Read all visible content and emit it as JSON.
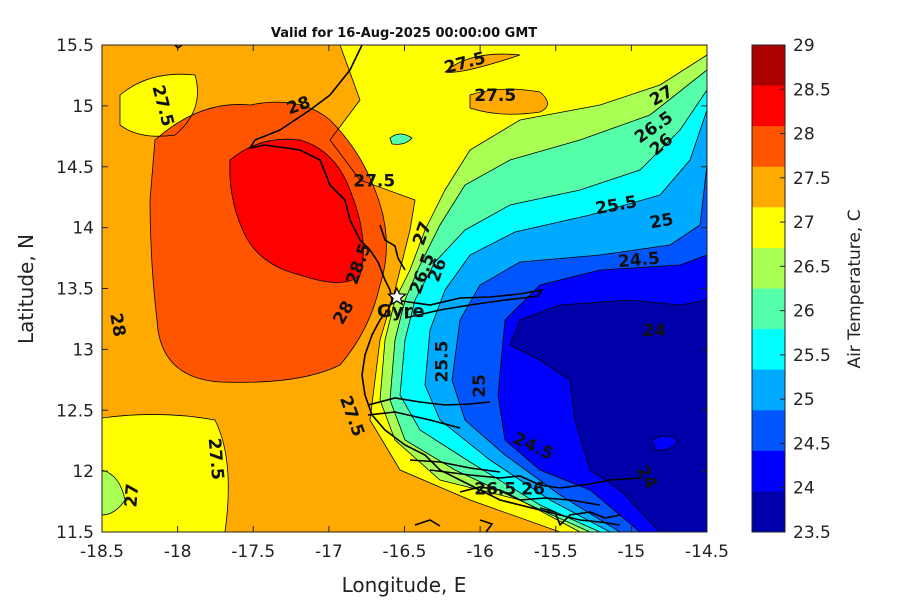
{
  "title": "Valid for 16-Aug-2025 00:00:00 GMT",
  "x_axis": {
    "label": "Longitude, E",
    "ticks": [
      "-18.5",
      "-18",
      "-17.5",
      "-17",
      "-16.5",
      "-16",
      "-15.5",
      "-15",
      "-14.5"
    ]
  },
  "y_axis": {
    "label": "Latitude, N",
    "ticks": [
      "15.5",
      "15",
      "14.5",
      "14",
      "13.5",
      "13",
      "12.5",
      "12",
      "11.5"
    ]
  },
  "colorbar": {
    "label": "Air Temperature, C",
    "ticks": [
      "29",
      "28.5",
      "28",
      "27.5",
      "27",
      "26.5",
      "26",
      "25.5",
      "25",
      "24.5",
      "24",
      "23.5"
    ],
    "colors": [
      "#aa0000",
      "#ff0000",
      "#ff5500",
      "#ffaa00",
      "#ffff00",
      "#aaff55",
      "#55ffaa",
      "#00ffff",
      "#00aaff",
      "#0055ff",
      "#0000ff",
      "#0000aa"
    ]
  },
  "place": {
    "name": "Gyre",
    "lon": -16.55,
    "lat": 13.43
  },
  "contour_labels": [
    {
      "text": "27.5",
      "lon": -18.1,
      "lat": 15.0,
      "rot": 75
    },
    {
      "text": "28",
      "lon": -17.2,
      "lat": 15.0,
      "rot": -20
    },
    {
      "text": "27.5",
      "lon": -16.1,
      "lat": 15.35,
      "rot": -15
    },
    {
      "text": "27.5",
      "lon": -15.9,
      "lat": 15.08,
      "rot": 0
    },
    {
      "text": "27.5",
      "lon": -16.7,
      "lat": 14.38,
      "rot": 0
    },
    {
      "text": "27",
      "lon": -14.8,
      "lat": 15.08,
      "rot": -30
    },
    {
      "text": "26.5",
      "lon": -14.85,
      "lat": 14.82,
      "rot": -35
    },
    {
      "text": "26",
      "lon": -14.8,
      "lat": 14.68,
      "rot": -40
    },
    {
      "text": "25.5",
      "lon": -15.1,
      "lat": 14.18,
      "rot": -10
    },
    {
      "text": "25",
      "lon": -14.8,
      "lat": 14.05,
      "rot": -10
    },
    {
      "text": "24.5",
      "lon": -14.95,
      "lat": 13.73,
      "rot": -5
    },
    {
      "text": "24",
      "lon": -14.85,
      "lat": 13.15,
      "rot": 0
    },
    {
      "text": "28.5",
      "lon": -16.8,
      "lat": 13.7,
      "rot": -70
    },
    {
      "text": "27",
      "lon": -16.38,
      "lat": 13.95,
      "rot": -70
    },
    {
      "text": "26.5",
      "lon": -16.38,
      "lat": 13.62,
      "rot": -70
    },
    {
      "text": "26",
      "lon": -16.28,
      "lat": 13.65,
      "rot": -70
    },
    {
      "text": "28",
      "lon": -16.9,
      "lat": 13.3,
      "rot": -60
    },
    {
      "text": "28",
      "lon": -18.4,
      "lat": 13.2,
      "rot": 80
    },
    {
      "text": "25.5",
      "lon": -16.25,
      "lat": 12.9,
      "rot": -90
    },
    {
      "text": "25",
      "lon": -16.0,
      "lat": 12.7,
      "rot": -90
    },
    {
      "text": "24.5",
      "lon": -15.65,
      "lat": 12.2,
      "rot": 25
    },
    {
      "text": "24",
      "lon": -14.9,
      "lat": 11.95,
      "rot": 60
    },
    {
      "text": "27.5",
      "lon": -16.85,
      "lat": 12.45,
      "rot": 70
    },
    {
      "text": "27.5",
      "lon": -17.75,
      "lat": 12.1,
      "rot": 85
    },
    {
      "text": "27",
      "lon": -18.3,
      "lat": 11.8,
      "rot": -85
    },
    {
      "text": "26.5",
      "lon": -15.9,
      "lat": 11.85,
      "rot": 0
    },
    {
      "text": "26",
      "lon": -15.65,
      "lat": 11.85,
      "rot": 0
    }
  ]
}
